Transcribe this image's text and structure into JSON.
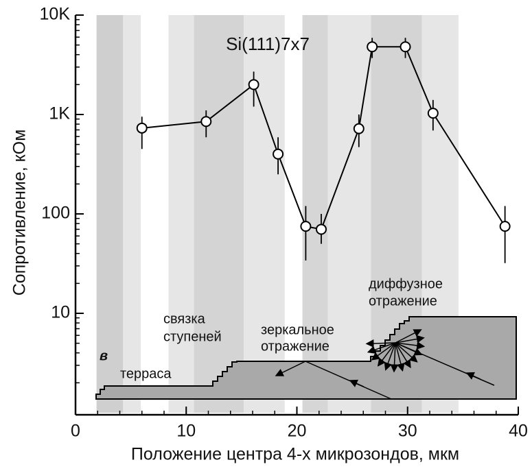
{
  "chart_data": {
    "type": "line",
    "title": "Si(111)7x7",
    "xlabel": "Положение центра 4-х микрозондов, мкм",
    "ylabel": "Сопротивление, кОм",
    "x": [
      6,
      11.8,
      16.1,
      18.3,
      20.8,
      22.2,
      25.6,
      26.8,
      29.8,
      32.3,
      38.8
    ],
    "series": [
      {
        "color": "#000000",
        "values": [
          730,
          850,
          2000,
          400,
          75,
          70,
          720,
          4800,
          4800,
          1030,
          75
        ],
        "lower": [
          450,
          590,
          1200,
          250,
          34,
          50,
          470,
          3700,
          3700,
          690,
          32
        ],
        "upper": [
          950,
          1100,
          2700,
          590,
          120,
          100,
          1000,
          5900,
          5900,
          1400,
          120
        ]
      }
    ],
    "xlim": [
      0,
      40
    ],
    "xticks": [
      0,
      10,
      20,
      30,
      40
    ],
    "ylim": [
      1,
      10000
    ],
    "log_y": true,
    "yticks": [
      10,
      100,
      {
        "value": 1000,
        "label": "1K"
      },
      {
        "value": 10000,
        "label": "10K"
      }
    ],
    "bands": [
      {
        "x": [
          1.9,
          4.3
        ],
        "color": "#cfcfcf"
      },
      {
        "x": [
          4.3,
          5.9
        ],
        "color": "#e6e6e6"
      },
      {
        "x": [
          8.4,
          10.7
        ],
        "color": "#e6e6e6"
      },
      {
        "x": [
          10.7,
          15.2
        ],
        "color": "#d4d4d4"
      },
      {
        "x": [
          15.2,
          18.9
        ],
        "color": "#e6e6e6"
      },
      {
        "x": [
          20.5,
          22.8
        ],
        "color": "#d6d6d6"
      },
      {
        "x": [
          22.8,
          26.7
        ],
        "color": "#e6e6e6"
      },
      {
        "x": [
          26.7,
          31.3
        ],
        "color": "#d4d4d4"
      },
      {
        "x": [
          31.3,
          34.6
        ],
        "color": "#e6e6e6"
      }
    ],
    "annotations": {
      "panel": "в",
      "terrace": "терраса",
      "step_bunch": [
        "связка",
        "ступеней"
      ],
      "specular": [
        "зеркальное",
        "отражение"
      ],
      "diffuse": [
        "диффузное",
        "отражение"
      ]
    }
  }
}
